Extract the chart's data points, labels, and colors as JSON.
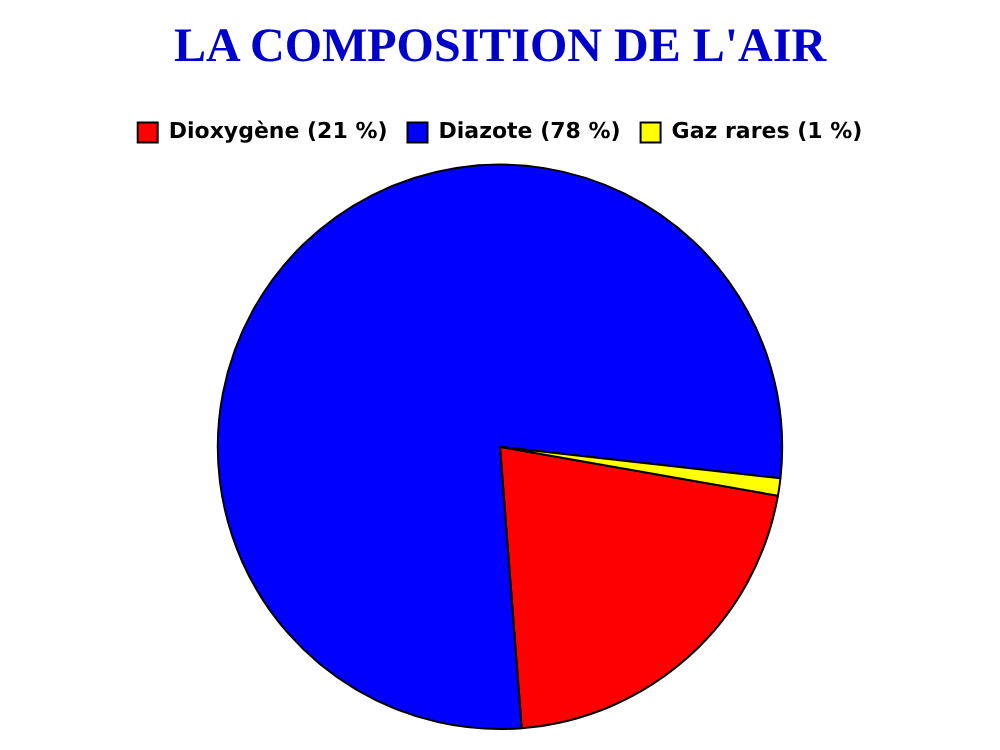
{
  "chart_data": {
    "type": "pie",
    "title": "LA COMPOSITION DE L'AIR",
    "categories": [
      "Dioxygène (21 %)",
      "Diazote (78 %)",
      "Gaz rares (1 %)"
    ],
    "values": [
      21,
      78,
      1
    ],
    "colors": [
      "#ff0000",
      "#0000ff",
      "#ffff00"
    ],
    "legend": "top"
  }
}
